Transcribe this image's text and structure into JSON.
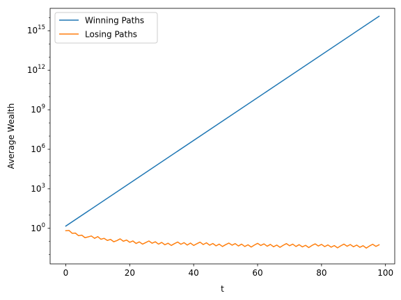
{
  "chart_data": {
    "type": "line",
    "title": "",
    "xlabel": "t",
    "ylabel": "Average Wealth",
    "yscale": "log",
    "xlim": [
      -4.9,
      102.9
    ],
    "ylim_log10": [
      -2.7,
      16.7
    ],
    "grid": false,
    "legend_position": "top-left",
    "x_ticks": [
      0,
      20,
      40,
      60,
      80,
      100
    ],
    "x_tick_labels": [
      "0",
      "20",
      "40",
      "60",
      "80",
      "100"
    ],
    "y_ticks_log10": [
      0,
      3,
      6,
      9,
      12,
      15
    ],
    "y_tick_labels": [
      {
        "base": "10",
        "exp": "0"
      },
      {
        "base": "10",
        "exp": "3"
      },
      {
        "base": "10",
        "exp": "6"
      },
      {
        "base": "10",
        "exp": "9"
      },
      {
        "base": "10",
        "exp": "12"
      },
      {
        "base": "10",
        "exp": "15"
      }
    ],
    "series": [
      {
        "name": "Winning Paths",
        "color": "#1f77b4",
        "x": [
          0,
          98
        ],
        "y_log10": [
          0.17,
          16.1
        ]
      },
      {
        "name": "Losing Paths",
        "color": "#ff7f0e",
        "x": [
          0,
          1,
          2,
          3,
          4,
          5,
          6,
          7,
          8,
          9,
          10,
          11,
          12,
          13,
          14,
          15,
          16,
          17,
          18,
          19,
          20,
          21,
          22,
          23,
          24,
          25,
          26,
          27,
          28,
          29,
          30,
          31,
          32,
          33,
          34,
          35,
          36,
          37,
          38,
          39,
          40,
          41,
          42,
          43,
          44,
          45,
          46,
          47,
          48,
          49,
          50,
          51,
          52,
          53,
          54,
          55,
          56,
          57,
          58,
          59,
          60,
          61,
          62,
          63,
          64,
          65,
          66,
          67,
          68,
          69,
          70,
          71,
          72,
          73,
          74,
          75,
          76,
          77,
          78,
          79,
          80,
          81,
          82,
          83,
          84,
          85,
          86,
          87,
          88,
          89,
          90,
          91,
          92,
          93,
          94,
          95,
          96,
          97,
          98
        ],
        "y_log10": [
          -0.18,
          -0.16,
          -0.38,
          -0.36,
          -0.56,
          -0.52,
          -0.71,
          -0.65,
          -0.58,
          -0.76,
          -0.63,
          -0.83,
          -0.76,
          -0.92,
          -0.84,
          -1.02,
          -0.93,
          -0.8,
          -0.98,
          -0.89,
          -1.06,
          -0.96,
          -1.15,
          -1.03,
          -1.2,
          -1.08,
          -0.96,
          -1.13,
          -1.02,
          -1.2,
          -1.07,
          -1.25,
          -1.13,
          -1.3,
          -1.16,
          -1.04,
          -1.21,
          -1.09,
          -1.27,
          -1.12,
          -1.3,
          -1.17,
          -1.05,
          -1.23,
          -1.1,
          -1.28,
          -1.15,
          -1.33,
          -1.2,
          -1.38,
          -1.24,
          -1.12,
          -1.28,
          -1.16,
          -1.34,
          -1.2,
          -1.38,
          -1.25,
          -1.42,
          -1.27,
          -1.14,
          -1.3,
          -1.18,
          -1.36,
          -1.22,
          -1.4,
          -1.27,
          -1.44,
          -1.29,
          -1.16,
          -1.32,
          -1.2,
          -1.38,
          -1.24,
          -1.41,
          -1.29,
          -1.46,
          -1.3,
          -1.18,
          -1.34,
          -1.22,
          -1.39,
          -1.26,
          -1.43,
          -1.31,
          -1.48,
          -1.33,
          -1.2,
          -1.36,
          -1.23,
          -1.4,
          -1.27,
          -1.44,
          -1.32,
          -1.5,
          -1.34,
          -1.21,
          -1.37,
          -1.25
        ]
      }
    ]
  }
}
